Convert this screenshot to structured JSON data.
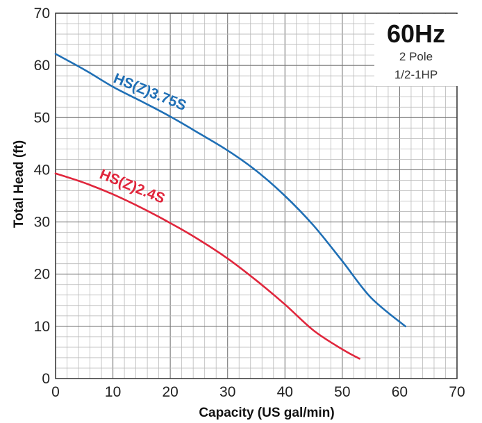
{
  "chart_data": {
    "type": "line",
    "xlabel": "Capacity (US gal/min)",
    "ylabel": "Total Head (ft)",
    "xlim": [
      0,
      70
    ],
    "ylim": [
      0,
      70
    ],
    "xticks": [
      "0",
      "10",
      "20",
      "30",
      "40",
      "50",
      "60",
      "70"
    ],
    "yticks": [
      "0",
      "10",
      "20",
      "30",
      "40",
      "50",
      "60",
      "70"
    ],
    "grid": "minor",
    "info_box": {
      "frequency": "60Hz",
      "poles": "2 Pole",
      "power": "1/2-1HP",
      "placement": "top-right"
    },
    "series": [
      {
        "name": "HS(Z)3.75S",
        "color": "#1f6fb5",
        "x": [
          0,
          5,
          10,
          15,
          20,
          25,
          30,
          35,
          40,
          45,
          50,
          55,
          61
        ],
        "y": [
          62.2,
          59.2,
          55.9,
          53.1,
          50.2,
          47,
          43.7,
          39.8,
          35,
          29.3,
          22.5,
          15.5,
          10
        ]
      },
      {
        "name": "HS(Z)2.4S",
        "color": "#e0263c",
        "x": [
          0,
          5,
          10,
          15,
          20,
          25,
          30,
          35,
          40,
          45,
          50,
          53
        ],
        "y": [
          39.3,
          37.5,
          35.3,
          32.7,
          29.8,
          26.6,
          23,
          18.8,
          14.2,
          9.2,
          5.6,
          3.8
        ]
      }
    ]
  }
}
